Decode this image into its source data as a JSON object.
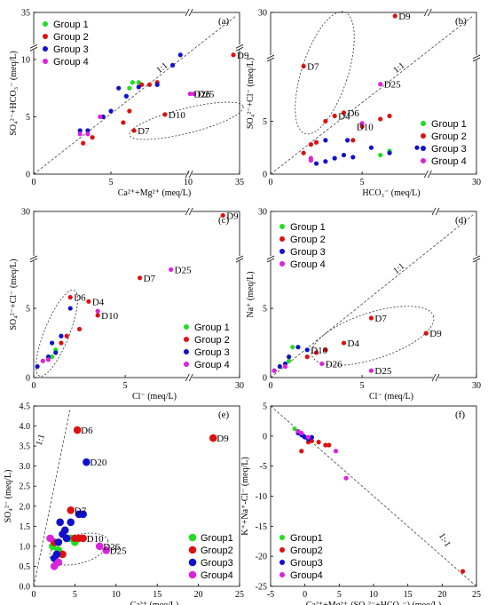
{
  "colors": {
    "Group 1": "#22dd22",
    "Group 2": "#dd1111",
    "Group 3": "#1111cc",
    "Group 4": "#dd22dd"
  },
  "chart_data": [
    {
      "id": "a",
      "type": "scatter",
      "panel_label": "(a)",
      "xlabel": "Ca²⁺+Mg²⁺ (meq/L)",
      "ylabel": "SO₄²⁻+HCO₃⁻ (meq/L)",
      "xlim": [
        0,
        35
      ],
      "ylim": [
        0,
        35
      ],
      "xticks": [
        "0",
        "5",
        "10",
        "35"
      ],
      "yticks": [
        "0",
        "5",
        "10",
        "35"
      ],
      "legend": [
        "Group 1",
        "Group 2",
        "Group 3",
        "Group 4"
      ],
      "ref_label": "1:1",
      "series": [
        {
          "name": "Group 1",
          "points": [
            [
              6.2,
              7.5
            ],
            [
              6.4,
              8.0
            ],
            [
              6.8,
              8.0
            ]
          ]
        },
        {
          "name": "Group 2",
          "points": [
            [
              3.2,
              2.7
            ],
            [
              3.8,
              3.2
            ],
            [
              5.8,
              4.5
            ],
            [
              6.2,
              5.5
            ],
            [
              6.5,
              3.8
            ],
            [
              7.0,
              7.8
            ],
            [
              7.5,
              7.8
            ],
            [
              8.0,
              8.0
            ],
            [
              8.5,
              5.2
            ],
            [
              32.0,
              10.4
            ]
          ]
        },
        {
          "name": "Group 3",
          "points": [
            [
              3.0,
              3.8
            ],
            [
              3.5,
              3.8
            ],
            [
              4.5,
              5.0
            ],
            [
              5.0,
              5.5
            ],
            [
              5.5,
              7.5
            ],
            [
              6.0,
              6.8
            ],
            [
              6.8,
              7.6
            ],
            [
              8.0,
              7.8
            ],
            [
              9.0,
              9.5
            ],
            [
              9.5,
              10.4
            ]
          ]
        },
        {
          "name": "Group 4",
          "points": [
            [
              3.0,
              3.5
            ],
            [
              3.5,
              3.5
            ],
            [
              4.3,
              5.0
            ],
            [
              11.0,
              7.0
            ],
            [
              12.8,
              7.0
            ]
          ]
        }
      ],
      "annotations": [
        {
          "text": "D9",
          "x": 32.0,
          "y": 10.4
        },
        {
          "text": "D26",
          "x": 11.0,
          "y": 7.0
        },
        {
          "text": "D25",
          "x": 12.8,
          "y": 7.0
        },
        {
          "text": "D10",
          "x": 8.5,
          "y": 5.2
        },
        {
          "text": "D7",
          "x": 6.5,
          "y": 3.8
        }
      ]
    },
    {
      "id": "b",
      "type": "scatter",
      "panel_label": "(b)",
      "xlabel": "HCO₃⁻ (meq/L)",
      "ylabel": "SO₄²⁻+Cl⁻ (meq/L)",
      "xlim": [
        0,
        30
      ],
      "ylim": [
        0,
        30
      ],
      "xticks": [
        "0",
        "5",
        "30"
      ],
      "yticks": [
        "0",
        "5",
        "30"
      ],
      "legend": [
        "Group 1",
        "Group 2",
        "Group 3",
        "Group 4"
      ],
      "ref_label": "1:1",
      "series": [
        {
          "name": "Group 1",
          "points": [
            [
              6.0,
              1.8
            ],
            [
              6.5,
              2.2
            ]
          ]
        },
        {
          "name": "Group 2",
          "points": [
            [
              1.8,
              2.0
            ],
            [
              2.2,
              2.8
            ],
            [
              2.5,
              3.0
            ],
            [
              3.0,
              5.0
            ],
            [
              3.5,
              5.5
            ],
            [
              4.0,
              5.8
            ],
            [
              4.5,
              3.2
            ],
            [
              5.0,
              4.5
            ],
            [
              6.0,
              5.2
            ],
            [
              6.5,
              5.5
            ],
            [
              1.8,
              10.2
            ],
            [
              6.8,
              28.5
            ]
          ]
        },
        {
          "name": "Group 3",
          "points": [
            [
              2.5,
              1.0
            ],
            [
              3.0,
              1.2
            ],
            [
              3.0,
              3.2
            ],
            [
              3.5,
              1.5
            ],
            [
              4.0,
              1.8
            ],
            [
              4.2,
              3.2
            ],
            [
              4.5,
              1.6
            ],
            [
              5.5,
              2.5
            ],
            [
              6.5,
              2.0
            ],
            [
              8.0,
              2.5
            ]
          ]
        },
        {
          "name": "Group 4",
          "points": [
            [
              2.2,
              1.3
            ],
            [
              2.2,
              1.5
            ],
            [
              5.0,
              4.8
            ],
            [
              6.0,
              8.5
            ]
          ]
        }
      ],
      "annotations": [
        {
          "text": "D9",
          "x": 6.8,
          "y": 28.5
        },
        {
          "text": "D25",
          "x": 6.0,
          "y": 8.5
        },
        {
          "text": "D7",
          "x": 1.8,
          "y": 10.2
        },
        {
          "text": "D4",
          "x": 3.5,
          "y": 5.5
        },
        {
          "text": "D6",
          "x": 4.0,
          "y": 5.8
        },
        {
          "text": "D10",
          "x": 4.5,
          "y": 4.5
        }
      ]
    },
    {
      "id": "c",
      "type": "scatter",
      "panel_label": "(c)",
      "xlabel": "Cl⁻ (meq/L)",
      "ylabel": "SO₄²⁻+Cl⁻ (meq/L)",
      "xlim": [
        0,
        30
      ],
      "ylim": [
        0,
        30
      ],
      "xticks": [
        "0",
        "5",
        "30"
      ],
      "yticks": [
        "0",
        "5",
        "30"
      ],
      "legend": [
        "Group 1",
        "Group 2",
        "Group 3",
        "Group 4"
      ],
      "series": [
        {
          "name": "Group 1",
          "points": [
            [
              1.0,
              1.5
            ],
            [
              1.2,
              2.0
            ]
          ]
        },
        {
          "name": "Group 2",
          "points": [
            [
              1.5,
              2.5
            ],
            [
              1.8,
              3.0
            ],
            [
              2.5,
              3.5
            ],
            [
              3.0,
              5.5
            ],
            [
              2.0,
              5.8
            ],
            [
              3.5,
              4.5
            ],
            [
              5.8,
              7.2
            ],
            [
              21.5,
              28.0
            ]
          ]
        },
        {
          "name": "Group 3",
          "points": [
            [
              0.2,
              0.8
            ],
            [
              0.8,
              1.5
            ],
            [
              1.0,
              2.5
            ],
            [
              1.2,
              1.8
            ],
            [
              1.5,
              3.0
            ],
            [
              2.0,
              5.0
            ]
          ]
        },
        {
          "name": "Group 4",
          "points": [
            [
              0.5,
              1.2
            ],
            [
              0.8,
              1.3
            ],
            [
              3.5,
              4.8
            ],
            [
              7.5,
              7.8
            ]
          ]
        }
      ],
      "annotations": [
        {
          "text": "D9",
          "x": 21.5,
          "y": 28.0
        },
        {
          "text": "D25",
          "x": 7.5,
          "y": 7.8
        },
        {
          "text": "D7",
          "x": 5.8,
          "y": 7.2
        },
        {
          "text": "D6",
          "x": 2.0,
          "y": 5.8
        },
        {
          "text": "D4",
          "x": 3.0,
          "y": 5.5
        },
        {
          "text": "D10",
          "x": 3.5,
          "y": 4.5
        }
      ]
    },
    {
      "id": "d",
      "type": "scatter",
      "panel_label": "(d)",
      "xlabel": "Cl⁻ (meq/L)",
      "ylabel": "Na⁺ (meq/L)",
      "xlim": [
        0,
        30
      ],
      "ylim": [
        0,
        30
      ],
      "xticks": [
        "0",
        "5",
        "30"
      ],
      "yticks": [
        "0",
        "5",
        "30"
      ],
      "legend": [
        "Group 1",
        "Group 2",
        "Group 3",
        "Group 4"
      ],
      "ref_label": "1:1",
      "series": [
        {
          "name": "Group 1",
          "points": [
            [
              1.0,
              1.2
            ],
            [
              1.2,
              2.2
            ]
          ]
        },
        {
          "name": "Group 2",
          "points": [
            [
              2.0,
              1.5
            ],
            [
              2.5,
              1.8
            ],
            [
              3.0,
              2.0
            ],
            [
              4.0,
              2.5
            ],
            [
              5.5,
              4.3
            ],
            [
              8.5,
              3.2
            ]
          ]
        },
        {
          "name": "Group 3",
          "points": [
            [
              0.2,
              0.5
            ],
            [
              0.5,
              0.8
            ],
            [
              0.8,
              1.0
            ],
            [
              1.0,
              1.5
            ],
            [
              1.5,
              2.2
            ],
            [
              2.0,
              2.0
            ]
          ]
        },
        {
          "name": "Group 4",
          "points": [
            [
              0.2,
              0.5
            ],
            [
              0.8,
              0.8
            ],
            [
              2.8,
              1.0
            ],
            [
              5.5,
              0.5
            ]
          ]
        }
      ],
      "annotations": [
        {
          "text": "D7",
          "x": 5.5,
          "y": 4.3
        },
        {
          "text": "D9",
          "x": 8.5,
          "y": 3.2
        },
        {
          "text": "D10",
          "x": 2.0,
          "y": 2.0
        },
        {
          "text": "D4",
          "x": 4.0,
          "y": 2.5
        },
        {
          "text": "D26",
          "x": 2.8,
          "y": 1.0
        },
        {
          "text": "D25",
          "x": 5.5,
          "y": 0.5
        }
      ]
    },
    {
      "id": "e",
      "type": "scatter",
      "panel_label": "(e)",
      "xlabel": "Ca²⁺ (meq/L)",
      "ylabel": "SO₄²⁻ (meq/L)",
      "xlim": [
        0,
        25
      ],
      "ylim": [
        0,
        4.5
      ],
      "xticks": [
        "0",
        "5",
        "10",
        "15",
        "20",
        "25"
      ],
      "yticks": [
        "0.0",
        "0.5",
        "1.0",
        "1.5",
        "2.0",
        "2.5",
        "3.0",
        "3.5",
        "4.0",
        "4.5"
      ],
      "legend": [
        "Group1",
        "Group2",
        "Group3",
        "Group4"
      ],
      "ref_label": "1:1",
      "series": [
        {
          "name": "Group1",
          "points": [
            [
              2.3,
              1.0
            ],
            [
              3.0,
              0.9
            ],
            [
              4.5,
              1.2
            ],
            [
              5.0,
              1.1
            ]
          ]
        },
        {
          "name": "Group2",
          "points": [
            [
              2.5,
              1.1
            ],
            [
              3.5,
              0.8
            ],
            [
              4.0,
              1.2
            ],
            [
              4.5,
              1.9
            ],
            [
              5.0,
              1.2
            ],
            [
              5.5,
              1.2
            ],
            [
              6.0,
              1.2
            ],
            [
              5.3,
              3.9
            ],
            [
              21.8,
              3.7
            ]
          ]
        },
        {
          "name": "Group3",
          "points": [
            [
              2.5,
              0.7
            ],
            [
              2.8,
              0.8
            ],
            [
              3.0,
              1.1
            ],
            [
              3.2,
              1.6
            ],
            [
              3.5,
              1.3
            ],
            [
              3.8,
              1.4
            ],
            [
              4.0,
              1.2
            ],
            [
              4.5,
              1.6
            ],
            [
              5.5,
              1.8
            ],
            [
              6.0,
              1.8
            ],
            [
              6.4,
              3.1
            ]
          ]
        },
        {
          "name": "Group4",
          "points": [
            [
              2.0,
              1.2
            ],
            [
              2.5,
              0.5
            ],
            [
              3.0,
              0.6
            ],
            [
              8.0,
              1.0
            ],
            [
              8.8,
              0.9
            ]
          ]
        }
      ],
      "annotations": [
        {
          "text": "D6",
          "x": 5.3,
          "y": 3.9
        },
        {
          "text": "D9",
          "x": 21.8,
          "y": 3.7
        },
        {
          "text": "D20",
          "x": 6.4,
          "y": 3.1
        },
        {
          "text": "D7",
          "x": 4.5,
          "y": 1.9
        },
        {
          "text": "D10",
          "x": 6.0,
          "y": 1.2
        },
        {
          "text": "D26",
          "x": 8.0,
          "y": 1.0
        },
        {
          "text": "D25",
          "x": 8.8,
          "y": 0.9
        }
      ]
    },
    {
      "id": "f",
      "type": "scatter",
      "panel_label": "(f)",
      "xlabel": "Ca²⁺+Mg²⁺-(SO₄²⁻+HCO₃⁻) (meq/L)",
      "ylabel": "K⁺+Na⁺-Cl⁻ (meq/L)",
      "xlim": [
        -5,
        25
      ],
      "ylim": [
        -25,
        5
      ],
      "xticks": [
        "-5",
        "0",
        "5",
        "10",
        "15",
        "20",
        "25"
      ],
      "yticks": [
        "-25",
        "-20",
        "-15",
        "-10",
        "-5",
        "0",
        "5"
      ],
      "legend": [
        "Group1",
        "Group2",
        "Group3",
        "Group4"
      ],
      "ref_label": "1:-1",
      "series": [
        {
          "name": "Group1",
          "points": [
            [
              -1.5,
              1.2
            ],
            [
              -1.0,
              0.8
            ]
          ]
        },
        {
          "name": "Group2",
          "points": [
            [
              -0.5,
              -2.5
            ],
            [
              0.5,
              -1.0
            ],
            [
              1.0,
              -0.8
            ],
            [
              2.0,
              -1.0
            ],
            [
              3.0,
              -1.5
            ],
            [
              3.5,
              -1.5
            ],
            [
              23.0,
              -22.5
            ]
          ]
        },
        {
          "name": "Group3",
          "points": [
            [
              -1.0,
              0.5
            ],
            [
              -0.5,
              0.2
            ],
            [
              -0.2,
              0.0
            ],
            [
              0.0,
              -0.2
            ],
            [
              0.5,
              -0.5
            ],
            [
              1.0,
              -0.2
            ]
          ]
        },
        {
          "name": "Group4",
          "points": [
            [
              -1.0,
              0.8
            ],
            [
              -0.5,
              0.5
            ],
            [
              0.5,
              -0.2
            ],
            [
              4.5,
              -2.5
            ],
            [
              6.0,
              -7.0
            ]
          ]
        }
      ]
    }
  ]
}
